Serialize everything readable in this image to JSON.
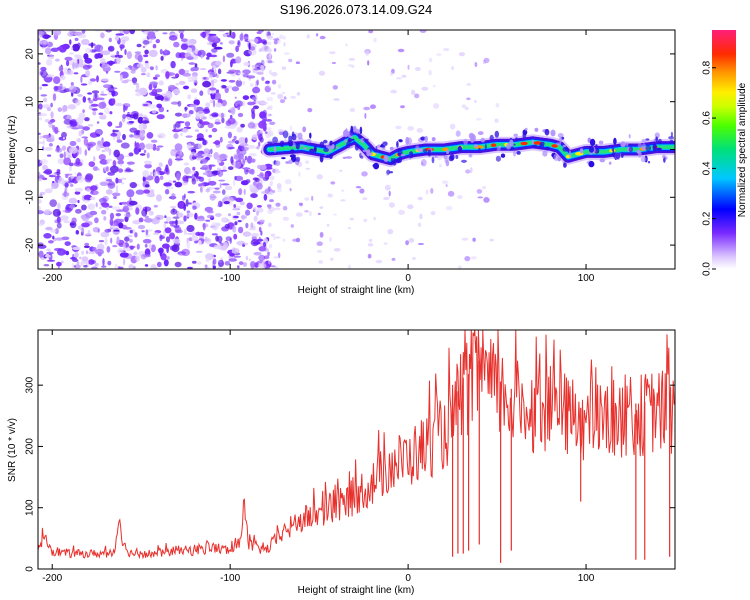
{
  "title": "S196.2026.073.14.09.G24",
  "chart_data": [
    {
      "type": "heatmap",
      "xlabel": "Height of straight line (km)",
      "ylabel": "Frequency (Hz)",
      "xlim": [
        -208,
        150
      ],
      "ylim": [
        -25,
        25
      ],
      "xticks": [
        -200,
        -100,
        0,
        100
      ],
      "xtick_labels": [
        "-200",
        "-100",
        "0",
        "100"
      ],
      "yticks": [
        -20,
        -10,
        0,
        10,
        20
      ],
      "ytick_labels": [
        "-20",
        "-10",
        "0",
        "10",
        "20"
      ],
      "noise_region_x": [
        -208,
        -78
      ],
      "signal_start_x": -78,
      "signal_ridge": {
        "x": [
          -78,
          -60,
          -45,
          -35,
          -30,
          -25,
          -20,
          -15,
          -10,
          -5,
          0,
          10,
          20,
          30,
          40,
          50,
          60,
          70,
          80,
          85,
          90,
          95,
          100,
          110,
          120,
          130,
          140,
          150
        ],
        "freq": [
          0,
          0.5,
          -0.5,
          1.5,
          2.5,
          1,
          -1,
          -1.5,
          -2,
          -1,
          -0.5,
          0,
          0,
          0.5,
          0.5,
          1,
          1,
          1.5,
          1,
          0.5,
          -1.5,
          -1,
          -0.5,
          -0.5,
          0,
          0,
          0.5,
          0.5
        ]
      },
      "colorbar": {
        "label": "Normalized spectral amplitude",
        "range": [
          0.0,
          0.95
        ],
        "ticks": [
          0.0,
          0.2,
          0.4,
          0.6,
          0.8
        ],
        "tick_labels": [
          "0.0",
          "0.2",
          "0.4",
          "0.6",
          "0.8"
        ]
      }
    },
    {
      "type": "line",
      "xlabel": "Height of straight line (km)",
      "ylabel": "SNR (10 * v/v)",
      "xlim": [
        -208,
        150
      ],
      "ylim": [
        0,
        390
      ],
      "xticks": [
        -200,
        -100,
        0,
        100
      ],
      "xtick_labels": [
        "-200",
        "-100",
        "0",
        "100"
      ],
      "yticks": [
        0,
        100,
        200,
        300
      ],
      "ytick_labels": [
        "0",
        "100",
        "200",
        "300"
      ],
      "series": [
        {
          "name": "SNR",
          "color": "#e8302c",
          "x": [
            -208,
            -205,
            -200,
            -190,
            -180,
            -170,
            -165,
            -162,
            -160,
            -158,
            -155,
            -150,
            -140,
            -130,
            -120,
            -110,
            -100,
            -95,
            -92,
            -90,
            -85,
            -80,
            -70,
            -60,
            -50,
            -40,
            -30,
            -20,
            -10,
            0,
            10,
            20,
            25,
            30,
            35,
            40,
            45,
            50,
            55,
            60,
            70,
            80,
            90,
            100,
            110,
            120,
            130,
            140,
            150
          ],
          "values": [
            25,
            60,
            30,
            25,
            25,
            25,
            30,
            90,
            40,
            30,
            25,
            25,
            25,
            30,
            30,
            35,
            30,
            40,
            110,
            40,
            35,
            30,
            60,
            80,
            90,
            100,
            120,
            140,
            170,
            180,
            200,
            220,
            240,
            290,
            300,
            320,
            300,
            290,
            280,
            270,
            260,
            260,
            250,
            240,
            240,
            250,
            250,
            260,
            250
          ]
        }
      ],
      "dropouts": [
        {
          "x": 25,
          "min": 20
        },
        {
          "x": 28,
          "min": 25
        },
        {
          "x": 31,
          "min": 25
        },
        {
          "x": 34,
          "min": 30
        },
        {
          "x": 40,
          "min": 40
        },
        {
          "x": 52,
          "min": 10
        },
        {
          "x": 58,
          "min": 30
        },
        {
          "x": 97,
          "min": 110
        },
        {
          "x": 128,
          "min": 15
        },
        {
          "x": 133,
          "min": 15
        },
        {
          "x": 147,
          "min": 20
        }
      ]
    }
  ]
}
